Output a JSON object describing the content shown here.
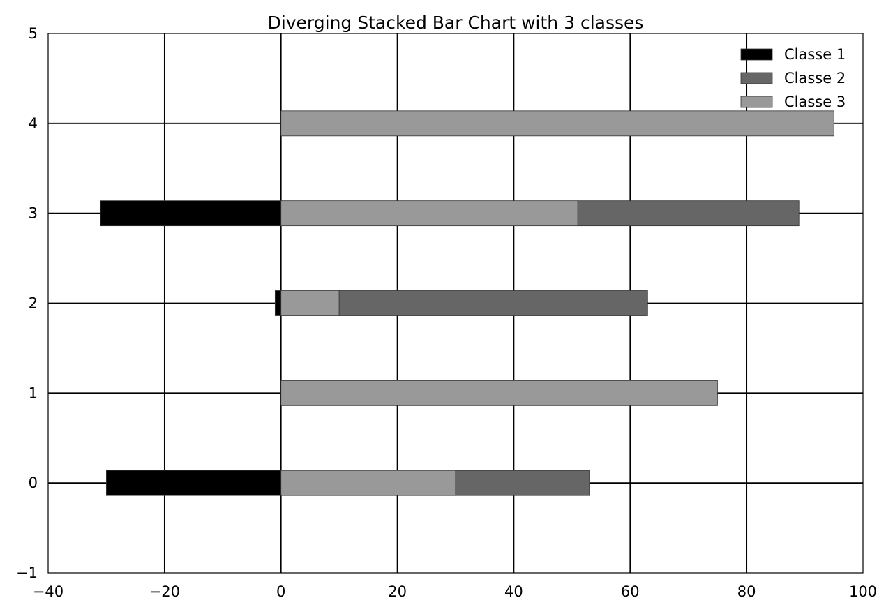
{
  "chart_data": {
    "type": "bar",
    "orientation": "horizontal",
    "stacking": "diverging",
    "title": "Diverging Stacked Bar Chart with 3 classes",
    "xlabel": "",
    "ylabel": "",
    "xlim": [
      -40,
      100
    ],
    "ylim": [
      -1,
      5
    ],
    "x_ticks": [
      -40,
      -20,
      0,
      20,
      40,
      60,
      80,
      100
    ],
    "x_tick_labels": [
      "−40",
      "−20",
      "0",
      "20",
      "40",
      "60",
      "80",
      "100"
    ],
    "y_ticks": [
      -1,
      0,
      1,
      2,
      3,
      4,
      5
    ],
    "y_tick_labels": [
      "−1",
      "0",
      "1",
      "2",
      "3",
      "4",
      "5"
    ],
    "grid": true,
    "legend_position": "top-right",
    "categories": [
      0,
      1,
      2,
      3,
      4
    ],
    "series": [
      {
        "name": "Classe 1",
        "color": "#000000",
        "segments": [
          [
            -30,
            0
          ],
          null,
          [
            -1,
            0
          ],
          [
            -31,
            0
          ],
          null
        ]
      },
      {
        "name": "Classe 3",
        "color": "#999999",
        "segments": [
          [
            0,
            30
          ],
          [
            0,
            75
          ],
          [
            0,
            10
          ],
          [
            0,
            51
          ],
          [
            0,
            95
          ]
        ]
      },
      {
        "name": "Classe 2",
        "color": "#666666",
        "segments": [
          [
            30,
            53
          ],
          null,
          [
            10,
            63
          ],
          [
            51,
            89
          ],
          null
        ]
      }
    ],
    "legend": [
      {
        "name": "Classe 1",
        "color": "#000000"
      },
      {
        "name": "Classe 2",
        "color": "#666666"
      },
      {
        "name": "Classe 3",
        "color": "#999999"
      }
    ]
  }
}
